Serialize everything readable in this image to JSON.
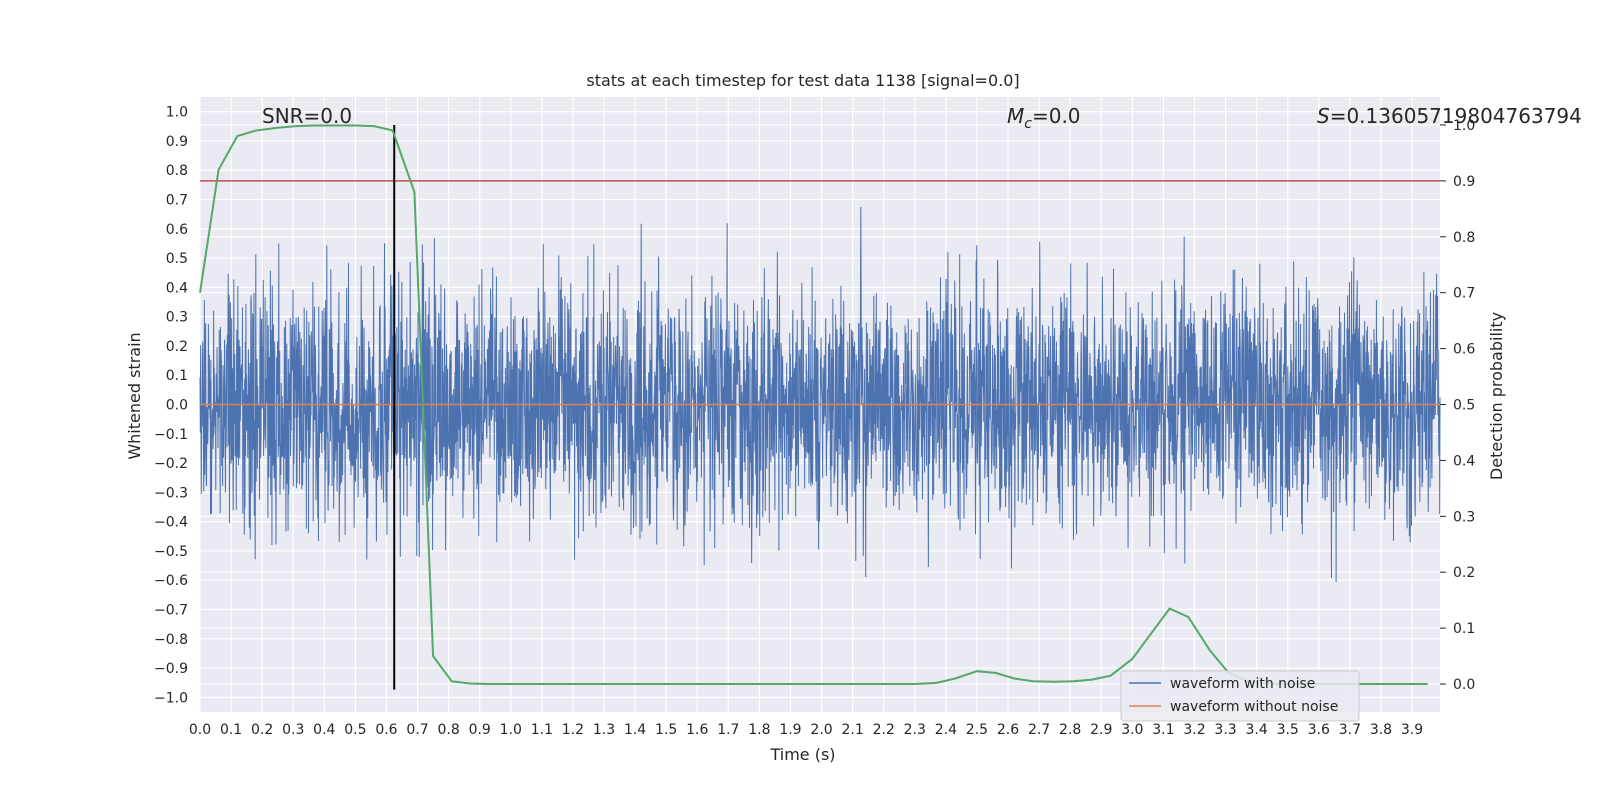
{
  "chart_data": {
    "type": "line",
    "title": "stats at each timestep for test data 1138 [signal=0.0]",
    "xlabel": "Time (s)",
    "ylabel": "Whitened strain",
    "y2label": "Detection probability",
    "xlim": [
      0.0,
      3.99
    ],
    "ylim": [
      -1.05,
      1.05
    ],
    "y2lim": [
      -0.05,
      1.05
    ],
    "x_ticks": [
      "0.0",
      "0.1",
      "0.2",
      "0.3",
      "0.4",
      "0.5",
      "0.6",
      "0.7",
      "0.8",
      "0.9",
      "1.0",
      "1.1",
      "1.2",
      "1.3",
      "1.4",
      "1.5",
      "1.6",
      "1.7",
      "1.8",
      "1.9",
      "2.0",
      "2.1",
      "2.2",
      "2.3",
      "2.4",
      "2.5",
      "2.6",
      "2.7",
      "2.8",
      "2.9",
      "3.0",
      "3.1",
      "3.2",
      "3.3",
      "3.4",
      "3.5",
      "3.6",
      "3.7",
      "3.8",
      "3.9"
    ],
    "y_ticks": [
      "1.0",
      "0.9",
      "0.8",
      "0.7",
      "0.6",
      "0.5",
      "0.4",
      "0.3",
      "0.2",
      "0.1",
      "0.0",
      "-0.1",
      "-0.2",
      "-0.3",
      "-0.4",
      "-0.5",
      "-0.6",
      "-0.7",
      "-0.8",
      "-0.9",
      "-1.0"
    ],
    "y2_ticks": [
      "1.0",
      "0.9",
      "0.8",
      "0.7",
      "0.6",
      "0.5",
      "0.4",
      "0.3",
      "0.2",
      "0.1",
      "0.0"
    ],
    "annotations": {
      "snr": "SNR=0.0",
      "mc": "=0.0",
      "s": "=0.13605719804763794"
    },
    "series": [
      {
        "name": "waveform with noise",
        "color": "#4c72b0",
        "axis": "left",
        "kind": "noise",
        "amplitude_range": [
          -0.95,
          1.0
        ]
      },
      {
        "name": "waveform without noise",
        "color": "#dd8452",
        "axis": "left",
        "y": 0.0
      },
      {
        "name": "detection probability",
        "color": "#55a868",
        "axis": "right",
        "x": [
          0.0,
          0.06,
          0.12,
          0.18,
          0.25,
          0.31,
          0.37,
          0.44,
          0.5,
          0.56,
          0.62,
          0.69,
          0.75,
          0.81,
          0.87,
          0.93,
          1.0,
          1.2,
          1.5,
          1.8,
          2.0,
          2.2,
          2.3,
          2.37,
          2.43,
          2.5,
          2.56,
          2.62,
          2.68,
          2.75,
          2.81,
          2.87,
          2.93,
          3.0,
          3.06,
          3.12,
          3.18,
          3.25,
          3.31,
          3.37,
          3.43,
          3.5,
          3.6,
          3.7,
          3.8,
          3.9,
          3.95
        ],
        "y": [
          0.7,
          0.92,
          0.98,
          0.99,
          0.995,
          0.998,
          0.999,
          0.999,
          0.999,
          0.998,
          0.99,
          0.88,
          0.05,
          0.005,
          0.001,
          0.0,
          0.0,
          0.0,
          0.0,
          0.0,
          0.0,
          0.0,
          0.0,
          0.002,
          0.01,
          0.023,
          0.02,
          0.01,
          0.005,
          0.004,
          0.005,
          0.008,
          0.015,
          0.045,
          0.09,
          0.135,
          0.12,
          0.06,
          0.02,
          0.005,
          0.001,
          0.0,
          0.0,
          0.0,
          0.0,
          0.0,
          0.0
        ]
      },
      {
        "name": "threshold",
        "color": "#c44e52",
        "axis": "right",
        "y": 0.9
      },
      {
        "name": "marker",
        "color": "#000000",
        "axis": "right",
        "x": 0.625,
        "y_range": [
          -0.01,
          1.0
        ]
      }
    ],
    "legend": {
      "position": "lower-right",
      "entries": [
        {
          "label": "waveform with noise",
          "color": "#4c72b0"
        },
        {
          "label": "waveform without noise",
          "color": "#dd8452"
        }
      ]
    },
    "grid": true
  },
  "style": {
    "plot_bg": "#eaeaf2",
    "grid_color": "#ffffff"
  }
}
